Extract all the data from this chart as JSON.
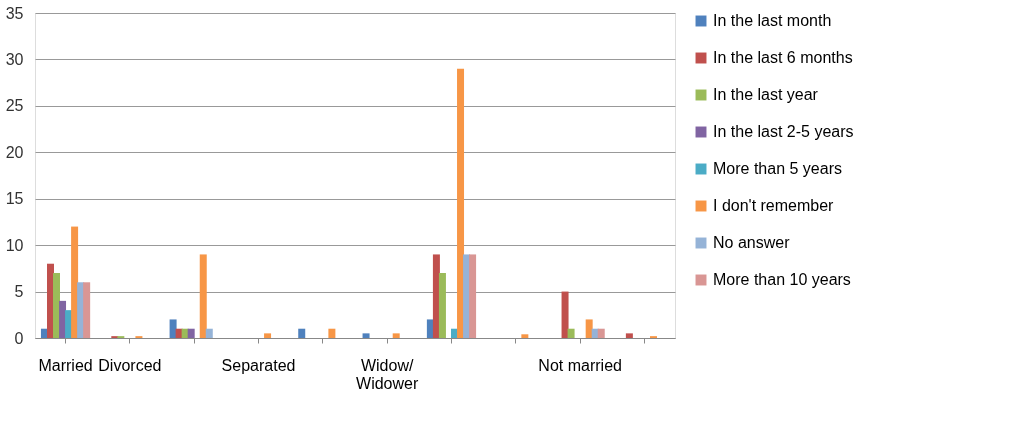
{
  "chart_data": {
    "type": "bar",
    "categories": [
      "Married",
      "Divorced",
      null,
      "Separated",
      null,
      "Widow/Widower",
      null,
      null,
      "Not married",
      null
    ],
    "series": [
      {
        "name": "In the last month",
        "color": "#4f81bd",
        "values": [
          1,
          0,
          2,
          0,
          1,
          0.5,
          2,
          0,
          0,
          0
        ]
      },
      {
        "name": "In the last 6 months",
        "color": "#c0504d",
        "values": [
          8,
          0.2,
          1,
          0,
          0,
          0,
          9,
          0,
          5,
          0.5
        ]
      },
      {
        "name": "In the last year",
        "color": "#9bbb59",
        "values": [
          7,
          0.2,
          1,
          0,
          0,
          0,
          7,
          0,
          1,
          0
        ]
      },
      {
        "name": "In the last 2-5 years",
        "color": "#8064a2",
        "values": [
          4,
          0,
          1,
          0,
          0,
          0,
          0,
          0,
          0,
          0
        ]
      },
      {
        "name": "More than 5 years",
        "color": "#4bacc6",
        "values": [
          3,
          0,
          0,
          0,
          0,
          0,
          1,
          0,
          0,
          0
        ]
      },
      {
        "name": "I don't remember",
        "color": "#f79646",
        "values": [
          12,
          0.2,
          9,
          0.5,
          1,
          0.5,
          29,
          0.4,
          2,
          0.2
        ]
      },
      {
        "name": "No answer",
        "color": "#95b3d7",
        "values": [
          6,
          0,
          1,
          0,
          0,
          0,
          9,
          0,
          1,
          0
        ]
      },
      {
        "name": "More than 10 years",
        "color": "#d99694",
        "values": [
          6,
          0,
          0,
          0,
          0,
          0,
          9,
          0,
          1,
          0
        ]
      }
    ],
    "ylim": [
      0,
      35
    ],
    "yticks": [
      0,
      5,
      10,
      15,
      20,
      25,
      30,
      35
    ],
    "grid": "y",
    "legend": "right"
  }
}
